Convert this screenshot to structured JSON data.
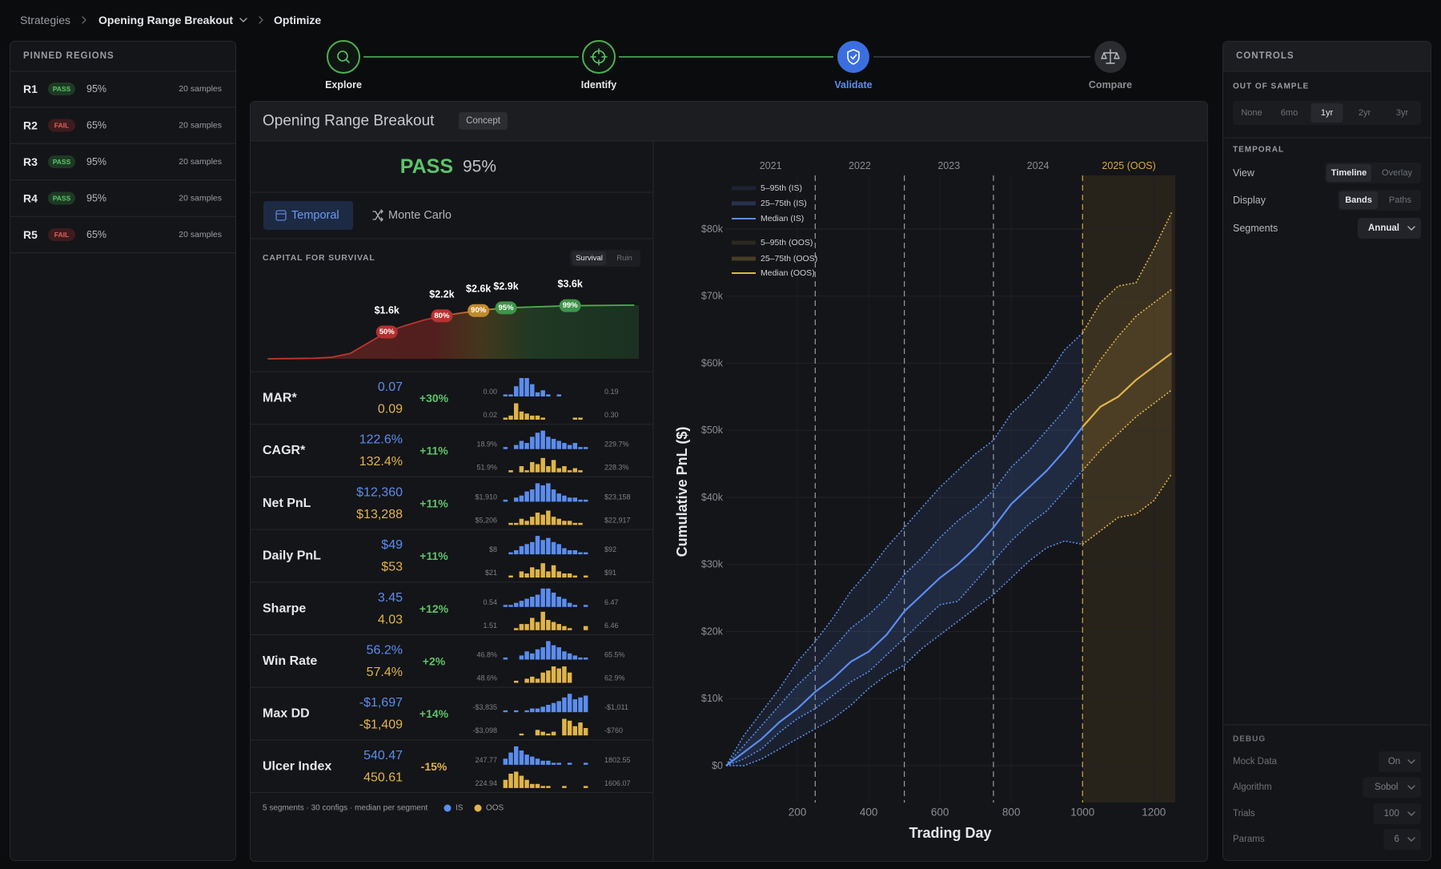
{
  "breadcrumb": [
    "Strategies",
    "Opening Range Breakout",
    "Optimize"
  ],
  "pinned_regions": {
    "title": "PINNED REGIONS",
    "rows": [
      {
        "id": "R1",
        "status": "PASS",
        "pass": true,
        "pct": "95%",
        "samples": "20 samples"
      },
      {
        "id": "R2",
        "status": "FAIL",
        "pass": false,
        "pct": "65%",
        "samples": "20 samples"
      },
      {
        "id": "R3",
        "status": "PASS",
        "pass": true,
        "pct": "95%",
        "samples": "20 samples"
      },
      {
        "id": "R4",
        "status": "PASS",
        "pass": true,
        "pct": "95%",
        "samples": "20 samples"
      },
      {
        "id": "R5",
        "status": "FAIL",
        "pass": false,
        "pct": "65%",
        "samples": "20 samples"
      }
    ]
  },
  "steps": [
    {
      "label": "Explore",
      "state": "done"
    },
    {
      "label": "Identify",
      "state": "done"
    },
    {
      "label": "Validate",
      "state": "active"
    },
    {
      "label": "Compare",
      "state": "pending"
    }
  ],
  "panel": {
    "title": "Opening Range Breakout",
    "badge": "Concept",
    "verdict": "PASS",
    "verdict_pass": true,
    "verdict_pct": "95%",
    "tabs": [
      "Temporal",
      "Monte Carlo"
    ],
    "active_tab": 0
  },
  "chart_data": [
    {
      "type": "line",
      "title": "CAPITAL FOR SURVIVAL",
      "toggle": [
        "Survival",
        "Ruin"
      ],
      "toggle_selected": 0,
      "x": [
        300,
        800,
        1000,
        1200,
        1400,
        1600,
        1800,
        2000,
        2200,
        2600,
        2900,
        3600,
        4300
      ],
      "values": [
        0,
        1,
        3,
        10,
        30,
        50,
        62,
        72,
        80,
        90,
        95,
        99,
        100
      ],
      "xlim": [
        270,
        4350
      ],
      "ylim": [
        0,
        100
      ],
      "markers": {
        "x": [
          1600,
          2200,
          2600,
          2900,
          3600
        ],
        "x_labels": [
          "$1.6k",
          "$2.2k",
          "$2.6k",
          "$2.9k",
          "$3.6k"
        ],
        "values": [
          50,
          80,
          90,
          95,
          99
        ],
        "value_labels": [
          "50%",
          "80%",
          "90%",
          "95%",
          "99%"
        ],
        "colors": [
          "#b3302f",
          "#b8332f",
          "#c08a2c",
          "#3f944a",
          "#3f944a"
        ]
      }
    },
    {
      "type": "line",
      "xlabel": "Trading Day",
      "ylabel": "Cumulative PnL ($)",
      "x": [
        0,
        50,
        100,
        150,
        200,
        250,
        300,
        350,
        400,
        450,
        500,
        550,
        600,
        650,
        700,
        750,
        800,
        850,
        900,
        950,
        1000,
        1050,
        1100,
        1150,
        1200,
        1250
      ],
      "xlim": [
        0,
        1260
      ],
      "ylim": [
        -5500,
        88000
      ],
      "xticks": [
        200,
        400,
        600,
        800,
        1000,
        1200
      ],
      "yticks": [
        {
          "value": 0,
          "label": "$0"
        },
        {
          "value": 10000,
          "label": "$10k"
        },
        {
          "value": 20000,
          "label": "$20k"
        },
        {
          "value": 30000,
          "label": "$30k"
        },
        {
          "value": 40000,
          "label": "$40k"
        },
        {
          "value": 50000,
          "label": "$50k"
        },
        {
          "value": 60000,
          "label": "$60k"
        },
        {
          "value": 70000,
          "label": "$70k"
        },
        {
          "value": 80000,
          "label": "$80k"
        }
      ],
      "grid": true,
      "periods": [
        {
          "label": "2021",
          "start": 0,
          "end": 250,
          "oos": false
        },
        {
          "label": "2022",
          "start": 250,
          "end": 500,
          "oos": false
        },
        {
          "label": "2023",
          "start": 500,
          "end": 750,
          "oos": false
        },
        {
          "label": "2024",
          "start": 750,
          "end": 1000,
          "oos": false
        },
        {
          "label": "2025 (OOS)",
          "start": 1000,
          "end": 1260,
          "oos": true
        }
      ],
      "series": [
        {
          "name": "5–95th (IS)",
          "color": "#5b8def",
          "low": [
            0,
            0,
            1000,
            2500,
            4000,
            5500,
            7000,
            9000,
            11500,
            13500,
            15000,
            17500,
            19500,
            21500,
            23500,
            25500,
            28000,
            30500,
            32500,
            33500,
            33000,
            null,
            null,
            null,
            null,
            null
          ],
          "high": [
            0,
            4500,
            8000,
            11500,
            15500,
            18500,
            22000,
            26000,
            29000,
            32500,
            35500,
            38500,
            41500,
            44000,
            46500,
            48500,
            52500,
            55000,
            58000,
            62000,
            64500,
            null,
            null,
            null,
            null,
            null
          ]
        },
        {
          "name": "25–75th (IS)",
          "color": "#5b8def",
          "low": [
            0,
            1000,
            2500,
            5000,
            7000,
            8500,
            10500,
            12500,
            14000,
            16500,
            19000,
            21500,
            24000,
            24500,
            27500,
            30500,
            33500,
            36000,
            38000,
            41000,
            44000,
            null,
            null,
            null,
            null,
            null
          ],
          "high": [
            0,
            3000,
            6000,
            9000,
            12000,
            14500,
            17500,
            20500,
            22500,
            25000,
            28500,
            31000,
            34000,
            36500,
            38500,
            41000,
            44500,
            47000,
            50000,
            53000,
            56500,
            null,
            null,
            null,
            null,
            null
          ]
        },
        {
          "name": "Median (IS)",
          "color": "#5b8def",
          "values": [
            0,
            2000,
            4000,
            6500,
            8500,
            11000,
            13000,
            15500,
            17000,
            19500,
            23000,
            25500,
            28000,
            30000,
            32500,
            35500,
            39000,
            41500,
            44000,
            47000,
            50500,
            null,
            null,
            null,
            null,
            null
          ]
        },
        {
          "name": "5–95th (OOS)",
          "color": "#e0b44a",
          "low": [
            null,
            null,
            null,
            null,
            null,
            null,
            null,
            null,
            null,
            null,
            null,
            null,
            null,
            null,
            null,
            null,
            null,
            null,
            null,
            null,
            33000,
            35000,
            37000,
            37500,
            39500,
            43500
          ],
          "high": [
            null,
            null,
            null,
            null,
            null,
            null,
            null,
            null,
            null,
            null,
            null,
            null,
            null,
            null,
            null,
            null,
            null,
            null,
            null,
            null,
            64500,
            69000,
            71500,
            72000,
            77000,
            82500
          ]
        },
        {
          "name": "25–75th (OOS)",
          "color": "#e0b44a",
          "low": [
            null,
            null,
            null,
            null,
            null,
            null,
            null,
            null,
            null,
            null,
            null,
            null,
            null,
            null,
            null,
            null,
            null,
            null,
            null,
            null,
            44000,
            47000,
            49500,
            52000,
            54000,
            56000
          ],
          "high": [
            null,
            null,
            null,
            null,
            null,
            null,
            null,
            null,
            null,
            null,
            null,
            null,
            null,
            null,
            null,
            null,
            null,
            null,
            null,
            null,
            56500,
            60500,
            64000,
            67000,
            69000,
            71000
          ]
        },
        {
          "name": "Median (OOS)",
          "color": "#e0b44a",
          "values": [
            null,
            null,
            null,
            null,
            null,
            null,
            null,
            null,
            null,
            null,
            null,
            null,
            null,
            null,
            null,
            null,
            null,
            null,
            null,
            null,
            50500,
            53500,
            55000,
            57500,
            59500,
            61500
          ]
        }
      ]
    }
  ],
  "metrics": {
    "rows": [
      {
        "name": "MAR*",
        "is": "0.07",
        "oos": "0.09",
        "delta": "+30%",
        "delta_color": "#5cc46a",
        "is_min": "0.00",
        "is_max": "0.19",
        "oos_min": "0.02",
        "oos_max": "0.30",
        "is_hist": [
          1,
          1,
          5,
          9,
          9,
          6,
          2,
          3,
          1,
          0,
          1,
          0,
          0,
          0,
          0,
          0
        ],
        "oos_hist": [
          1,
          2,
          8,
          4,
          3,
          2,
          2,
          1,
          0,
          0,
          0,
          0,
          0,
          1,
          1,
          0
        ]
      },
      {
        "name": "CAGR*",
        "is": "122.6%",
        "oos": "132.4%",
        "delta": "+11%",
        "delta_color": "#5cc46a",
        "is_min": "18.9%",
        "is_max": "229.7%",
        "oos_min": "51.9%",
        "oos_max": "228.3%",
        "is_hist": [
          1,
          0,
          2,
          4,
          3,
          6,
          8,
          9,
          6,
          5,
          4,
          3,
          2,
          3,
          1,
          1
        ],
        "oos_hist": [
          0,
          1,
          0,
          3,
          1,
          5,
          4,
          7,
          3,
          6,
          2,
          3,
          1,
          2,
          1,
          0
        ]
      },
      {
        "name": "Net PnL",
        "is": "$12,360",
        "oos": "$13,288",
        "delta": "+11%",
        "delta_color": "#5cc46a",
        "is_min": "$1,910",
        "is_max": "$23,158",
        "oos_min": "$5,206",
        "oos_max": "$22,917",
        "is_hist": [
          1,
          0,
          2,
          3,
          5,
          6,
          9,
          8,
          9,
          6,
          4,
          3,
          2,
          2,
          1,
          1
        ],
        "oos_hist": [
          0,
          1,
          1,
          3,
          2,
          4,
          6,
          5,
          7,
          4,
          3,
          2,
          2,
          1,
          1,
          0
        ]
      },
      {
        "name": "Daily PnL",
        "is": "$49",
        "oos": "$53",
        "delta": "+11%",
        "delta_color": "#5cc46a",
        "is_min": "$8",
        "is_max": "$92",
        "oos_min": "$21",
        "oos_max": "$91",
        "is_hist": [
          0,
          1,
          2,
          4,
          5,
          6,
          9,
          7,
          8,
          6,
          5,
          3,
          2,
          2,
          1,
          1
        ],
        "oos_hist": [
          0,
          1,
          0,
          3,
          2,
          5,
          4,
          7,
          3,
          6,
          3,
          2,
          2,
          1,
          0,
          1
        ]
      },
      {
        "name": "Sharpe",
        "is": "3.45",
        "oos": "4.03",
        "delta": "+12%",
        "delta_color": "#5cc46a",
        "is_min": "0.54",
        "is_max": "6.47",
        "oos_min": "1.51",
        "oos_max": "6.46",
        "is_hist": [
          1,
          1,
          2,
          3,
          4,
          5,
          6,
          9,
          9,
          7,
          5,
          4,
          2,
          1,
          0,
          1
        ],
        "oos_hist": [
          0,
          0,
          1,
          3,
          3,
          6,
          4,
          9,
          5,
          4,
          3,
          2,
          1,
          0,
          0,
          2
        ]
      },
      {
        "name": "Win Rate",
        "is": "56.2%",
        "oos": "57.4%",
        "delta": "+2%",
        "delta_color": "#5cc46a",
        "is_min": "46.8%",
        "is_max": "65.5%",
        "oos_min": "48.6%",
        "oos_max": "62.9%",
        "is_hist": [
          1,
          0,
          0,
          2,
          4,
          3,
          5,
          6,
          9,
          7,
          6,
          4,
          3,
          2,
          1,
          1
        ],
        "oos_hist": [
          0,
          0,
          1,
          0,
          2,
          3,
          2,
          5,
          6,
          8,
          7,
          8,
          5,
          0,
          0,
          0
        ]
      },
      {
        "name": "Max DD",
        "is": "-$1,697",
        "oos": "-$1,409",
        "delta": "+14%",
        "delta_color": "#5cc46a",
        "is_min": "-$3,835",
        "is_max": "-$1,011",
        "oos_min": "-$3,098",
        "oos_max": "-$760",
        "is_hist": [
          1,
          0,
          1,
          0,
          1,
          2,
          2,
          3,
          4,
          5,
          6,
          8,
          10,
          7,
          8,
          9
        ],
        "oos_hist": [
          0,
          0,
          0,
          1,
          0,
          0,
          3,
          2,
          1,
          2,
          0,
          9,
          8,
          5,
          7,
          4
        ]
      },
      {
        "name": "Ulcer Index",
        "is": "540.47",
        "oos": "450.61",
        "delta": "-15%",
        "delta_color": "#e0b44a",
        "is_min": "247.77",
        "is_max": "1802.55",
        "oos_min": "224.94",
        "oos_max": "1606.07",
        "is_hist": [
          3,
          6,
          9,
          7,
          5,
          4,
          3,
          2,
          2,
          1,
          1,
          0,
          1,
          0,
          0,
          1
        ],
        "oos_hist": [
          4,
          7,
          8,
          6,
          4,
          2,
          2,
          1,
          1,
          0,
          0,
          1,
          0,
          0,
          0,
          1
        ]
      }
    ],
    "footer": "5 segments · 30 configs · median per segment",
    "legend": [
      {
        "name": "IS",
        "color": "#5b8def"
      },
      {
        "name": "OOS",
        "color": "#e0b44a"
      }
    ]
  },
  "controls": {
    "title": "CONTROLS",
    "out_of_sample": {
      "label": "OUT OF SAMPLE",
      "options": [
        "None",
        "6mo",
        "1yr",
        "2yr",
        "3yr"
      ],
      "selected": 2
    },
    "temporal": {
      "label": "TEMPORAL",
      "rows": [
        {
          "label": "View",
          "options": [
            "Timeline",
            "Overlay"
          ],
          "selected": 0
        },
        {
          "label": "Display",
          "options": [
            "Bands",
            "Paths"
          ],
          "selected": 0
        },
        {
          "label": "Segments",
          "dropdown": "Annual"
        }
      ]
    },
    "debug": {
      "label": "DEBUG",
      "rows": [
        {
          "label": "Mock Data",
          "dropdown": "On"
        },
        {
          "label": "Algorithm",
          "dropdown": "Sobol"
        },
        {
          "label": "Trials",
          "dropdown": "100"
        },
        {
          "label": "Params",
          "dropdown": "6"
        }
      ]
    }
  }
}
